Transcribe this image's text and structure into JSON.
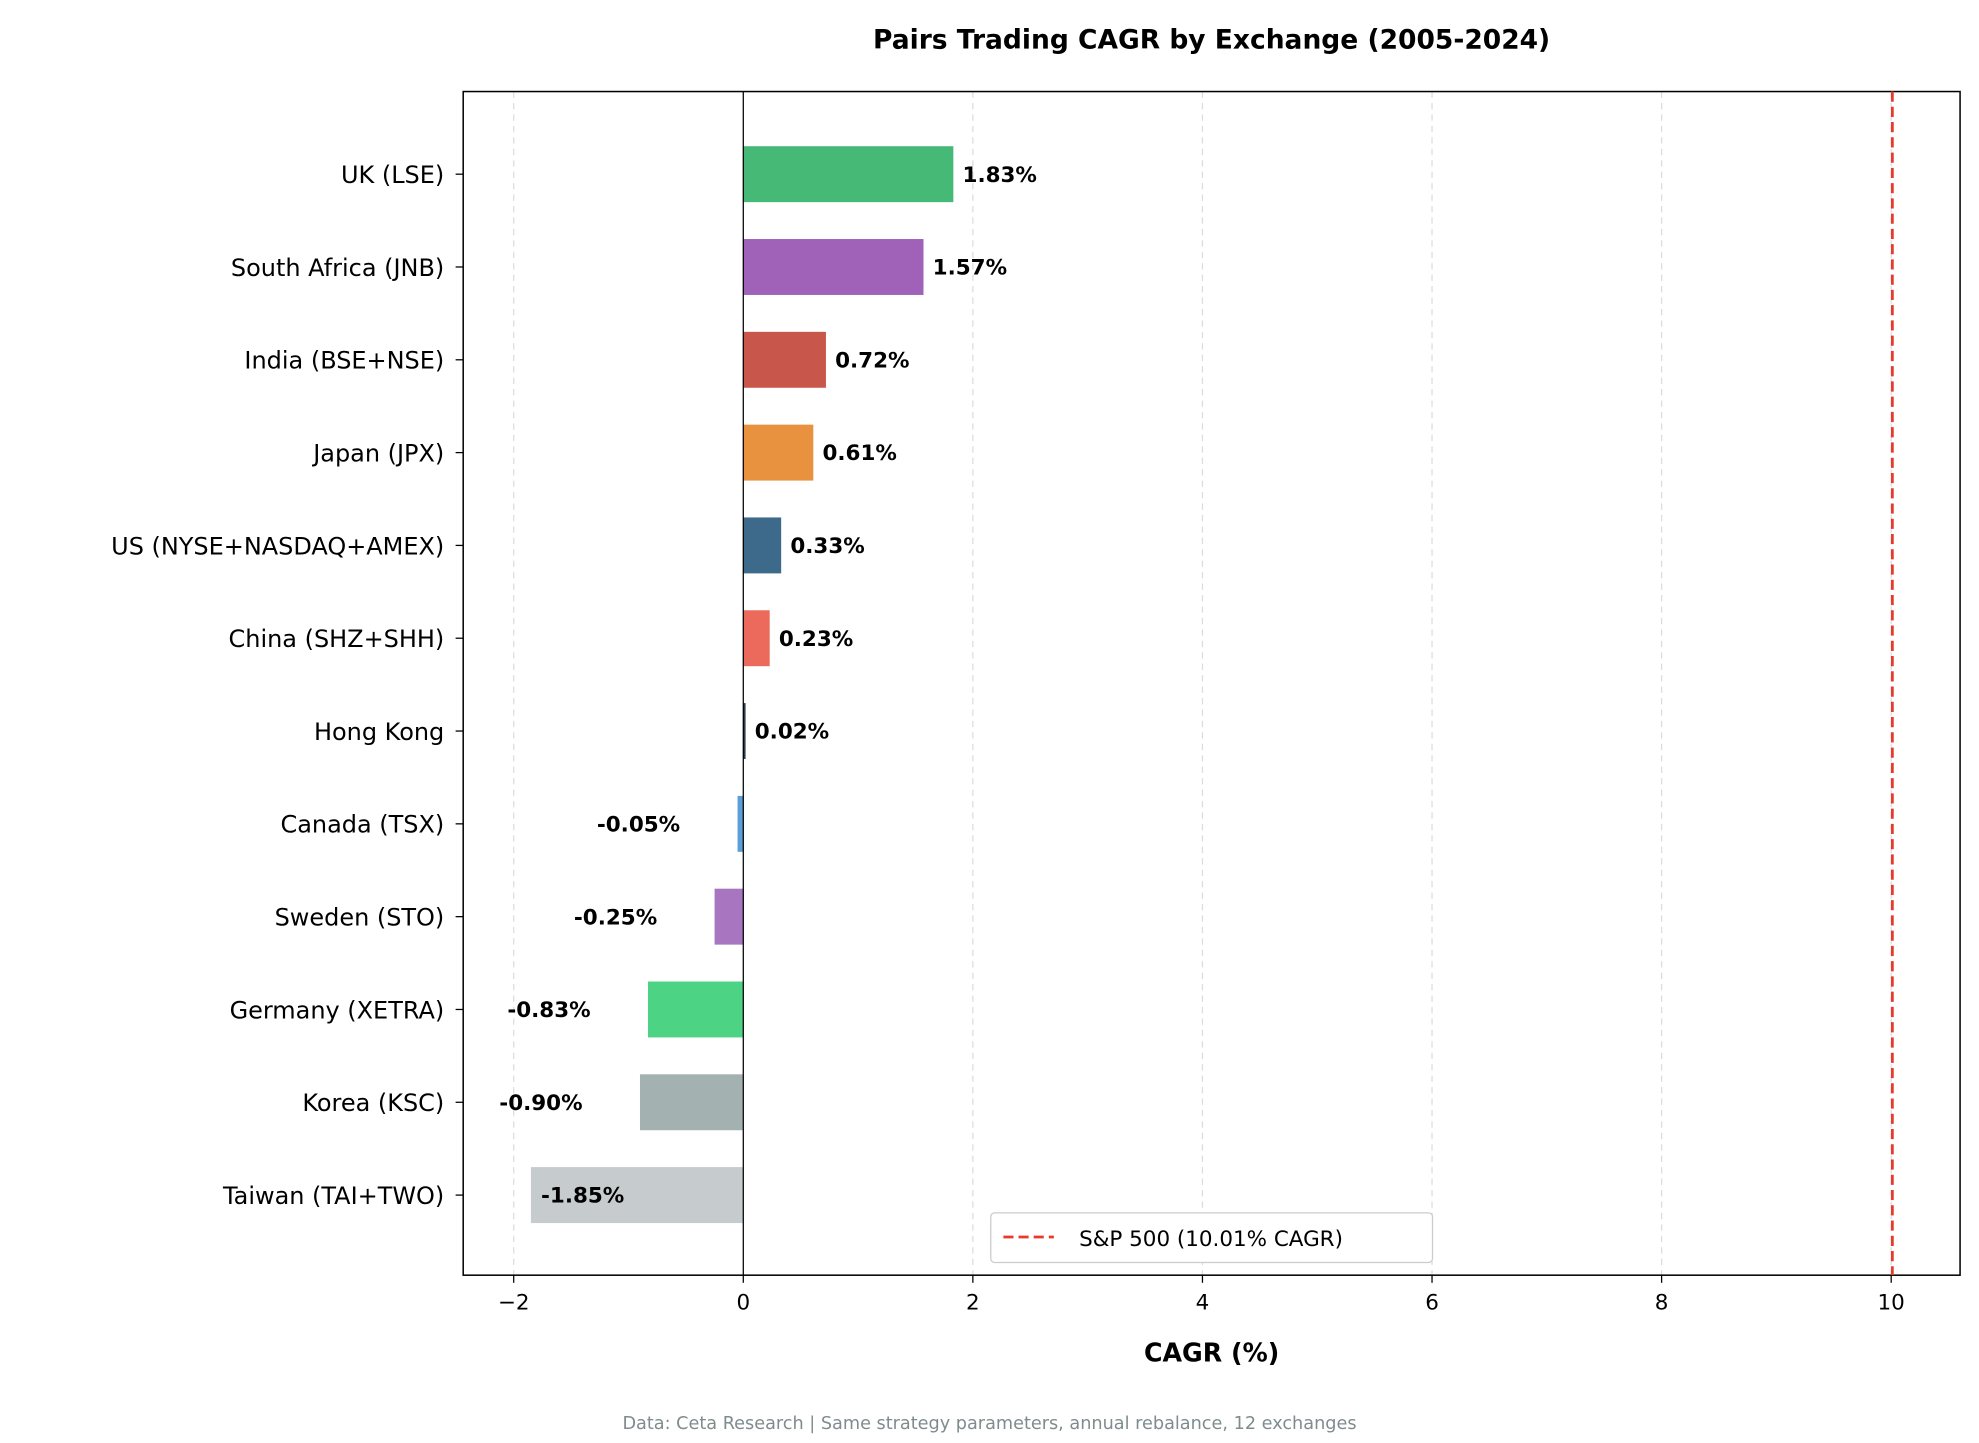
{
  "chart_data": {
    "type": "bar",
    "orientation": "horizontal",
    "title": "Pairs Trading CAGR by Exchange (2005-2024)",
    "xlabel": "CAGR (%)",
    "ylabel": "",
    "xlim": [
      -2.44,
      10.6
    ],
    "xticks": [
      -2,
      0,
      2,
      4,
      6,
      8,
      10
    ],
    "xtick_labels": [
      "−2",
      "0",
      "2",
      "4",
      "6",
      "8",
      "10"
    ],
    "grid": "x-dashed",
    "categories": [
      "UK (LSE)",
      "South Africa (JNB)",
      "India (BSE+NSE)",
      "Japan (JPX)",
      "US (NYSE+NASDAQ+AMEX)",
      "China (SHZ+SHH)",
      "Hong Kong",
      "Canada (TSX)",
      "Sweden (STO)",
      "Germany (XETRA)",
      "Korea (KSC)",
      "Taiwan (TAI+TWO)"
    ],
    "values": [
      1.83,
      1.57,
      0.72,
      0.61,
      0.33,
      0.23,
      0.02,
      -0.05,
      -0.25,
      -0.83,
      -0.9,
      -1.85
    ],
    "data_labels": [
      "1.83%",
      "1.57%",
      "0.72%",
      "0.61%",
      "0.33%",
      "0.23%",
      "0.02%",
      "-0.05%",
      "-0.25%",
      "-0.83%",
      "-0.90%",
      "-1.85%"
    ],
    "colors": [
      "#47b977",
      "#a062b9",
      "#c9564a",
      "#e8923f",
      "#3d6a8a",
      "#ec6a5c",
      "#2c3e50",
      "#5b9fd8",
      "#a875c0",
      "#4cd384",
      "#a4b1b1",
      "#c6cbcd"
    ],
    "reference_line": {
      "value": 10.01,
      "label": "S&P 500 (10.01% CAGR)",
      "color": "#e8392b",
      "style": "dashed"
    },
    "legend_position": "lower-center",
    "footnote": "Data: Ceta Research | Same strategy parameters, annual rebalance, 12 exchanges"
  }
}
